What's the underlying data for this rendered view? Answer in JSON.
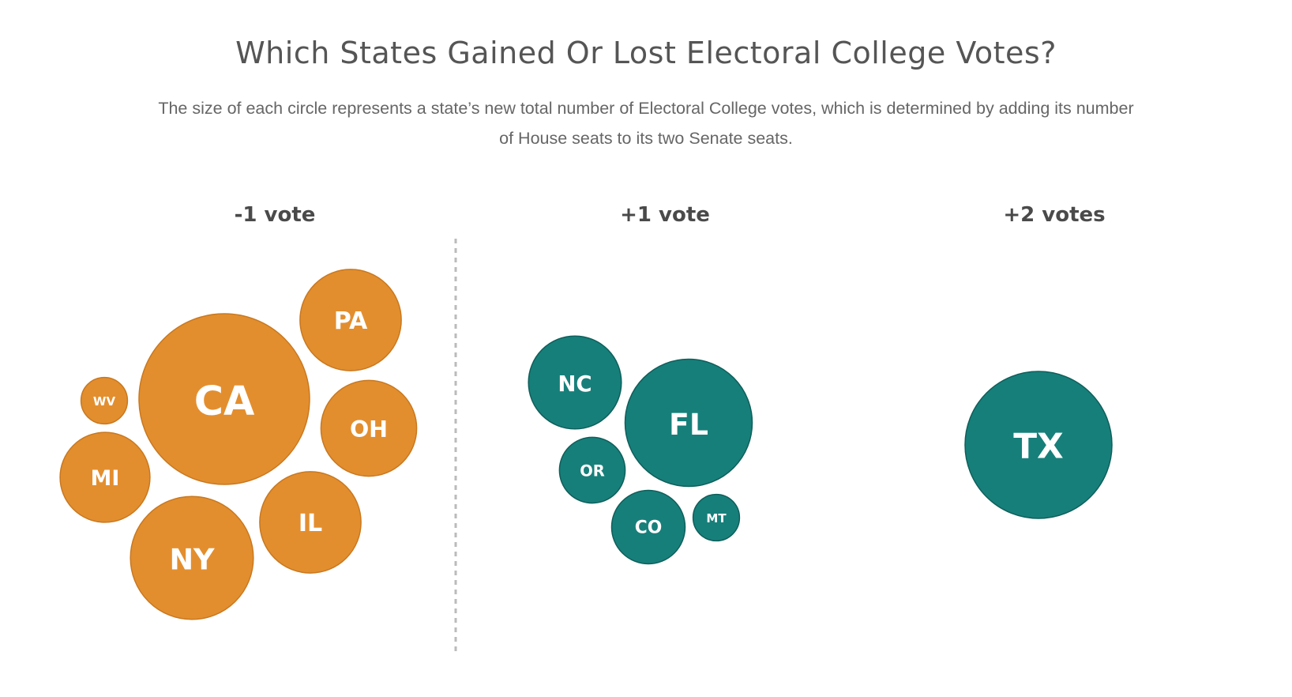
{
  "chart_data": {
    "type": "bubble",
    "title": "Which States Gained Or Lost Electoral College Votes?",
    "subtitle": "The size of each circle represents a state’s new total number of Electoral College votes, which is determined by adding its number of House seats to its two Senate seats.",
    "groups": [
      {
        "name": "-1 vote",
        "change": -1,
        "color": "#E38E2E",
        "stroke": "#C9781F",
        "states": [
          {
            "label": "CA",
            "electoral_votes": 54
          },
          {
            "label": "NY",
            "electoral_votes": 28
          },
          {
            "label": "PA",
            "electoral_votes": 19
          },
          {
            "label": "IL",
            "electoral_votes": 19
          },
          {
            "label": "OH",
            "electoral_votes": 17
          },
          {
            "label": "MI",
            "electoral_votes": 15
          },
          {
            "label": "WV",
            "electoral_votes": 4
          }
        ]
      },
      {
        "name": "+1 vote",
        "change": 1,
        "color": "#177F7A",
        "stroke": "#0E5F5B",
        "states": [
          {
            "label": "FL",
            "electoral_votes": 30
          },
          {
            "label": "NC",
            "electoral_votes": 16
          },
          {
            "label": "CO",
            "electoral_votes": 10
          },
          {
            "label": "OR",
            "electoral_votes": 8
          },
          {
            "label": "MT",
            "electoral_votes": 4
          }
        ]
      },
      {
        "name": "+2 votes",
        "change": 2,
        "color": "#177F7A",
        "stroke": "#0E5F5B",
        "states": [
          {
            "label": "TX",
            "electoral_votes": 40
          }
        ]
      }
    ],
    "divider_color": "#BBBBBB"
  }
}
